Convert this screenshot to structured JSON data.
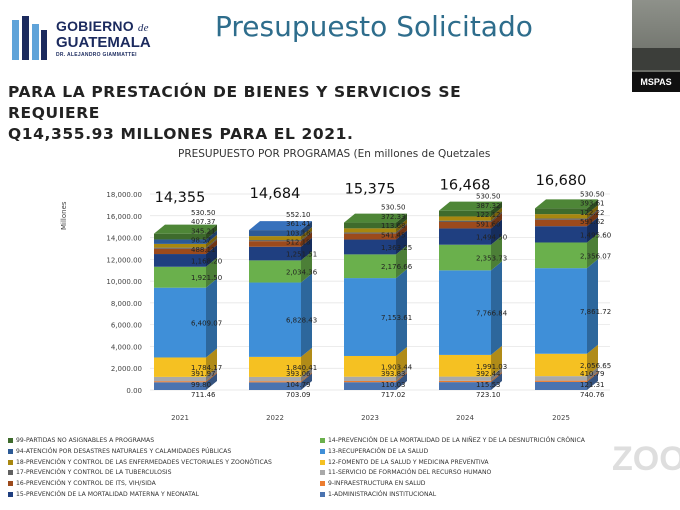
{
  "header": {
    "logo_line1": "GOBIERNO",
    "logo_de": "de",
    "logo_line2": "GUATEMALA",
    "logo_line3": "DR. ALEJANDRO GIAMMATTEI",
    "title": "Presupuesto Solicitado",
    "webcam_label": "MSPAS"
  },
  "subtitle": {
    "line1": "PARA LA PRESTACIÓN DE BIENES Y SERVICIOS SE REQUIERE",
    "line2": "Q14,355.93 MILLONES PARA EL 2021."
  },
  "watermark": "ZOO",
  "colors": {
    "title": "#2e6d8c",
    "brand_blue": "#1b2a5e"
  },
  "chart_data": {
    "type": "bar",
    "stacked": true,
    "title": "PRESUPUESTO POR PROGRAMAS (En millones de Quetzales",
    "ylabel": "Millones",
    "ylim": [
      0,
      18000
    ],
    "yticks": [
      "0.00",
      "2,000.00",
      "4,000.00",
      "6,000.00",
      "8,000.00",
      "10,000.00",
      "12,000.00",
      "14,000.00",
      "16,000.00",
      "18,000.00"
    ],
    "categories": [
      "2021",
      "2022",
      "2023",
      "2024",
      "2025"
    ],
    "totals": [
      "14,355",
      "14,684",
      "15,375",
      "16,468",
      "16,680"
    ],
    "series": [
      {
        "name": "1-ADMINISTRACIÓN INSTITUCIONAL",
        "color": "#4a73b0",
        "values": [
          711.46,
          703.09,
          717.02,
          723.1,
          740.76
        ],
        "labels": [
          "711.46",
          "703.09",
          "717.02",
          "723.10",
          "740.76"
        ]
      },
      {
        "name": "9-INFRAESTRUCTURA EN SALUD",
        "color": "#ec7d2f",
        "values": [
          99.8,
          104.79,
          110.03,
          115.53,
          121.31
        ],
        "labels": [
          "99.80",
          "104.79",
          "110.03",
          "115.53",
          "121.31"
        ]
      },
      {
        "name": "11-SERVICIO DE FORMACIÓN DEL RECURSO HUMANO",
        "color": "#a9a9a9",
        "values": [
          391.97,
          393.06,
          393.83,
          392.44,
          410.79
        ],
        "labels": [
          "391.97",
          "393.06",
          "393.83",
          "392.44",
          "410.79"
        ]
      },
      {
        "name": "12-FOMENTO DE LA SALUD Y MEDICINA PREVENTIVA",
        "color": "#f5c122",
        "values": [
          1784.17,
          1840.41,
          1903.44,
          1991.03,
          2056.65
        ],
        "labels": [
          "1,784.17",
          "1,840.41",
          "1,903.44",
          "1,991.03",
          "2,056.65"
        ]
      },
      {
        "name": "13-RECUPERACIÓN DE LA SALUD",
        "color": "#3f8fd8",
        "values": [
          6409.07,
          6828.43,
          7153.61,
          7766.84,
          7861.72
        ],
        "labels": [
          "6,409.07",
          "6,828.43",
          "7,153.61",
          "7,766.84",
          "7,861.72"
        ]
      },
      {
        "name": "14-PREVENCIÓN DE LA MORTALIDAD DE LA NIÑEZ Y DE LA DESNUTRICIÓN CRÓNICA",
        "color": "#6ab04c",
        "values": [
          1921.5,
          2034.36,
          2176.66,
          2353.73,
          2356.07
        ],
        "labels": [
          "1,921.50",
          "2,034.36",
          "2,176.66",
          "2,353.73",
          "2,356.07"
        ]
      },
      {
        "name": "15-PREVENCIÓN DE LA MORTALIDAD MATERNA Y NEONATAL",
        "color": "#1f3f80",
        "values": [
          1168.2,
          1251.51,
          1363.25,
          1494.5,
          1495.6
        ],
        "labels": [
          "1,168.20",
          "1,251.51",
          "1,363.25",
          "1,494.50",
          "1,495.60"
        ]
      },
      {
        "name": "16-PREVENCIÓN Y CONTROL DE ITS, VIH/SIDA",
        "color": "#9c4a1c",
        "values": [
          488.11,
          512.18,
          541.45,
          591.6,
          591.62
        ],
        "labels": [
          "488.11",
          "512.18",
          "541.45",
          "591.60",
          "591.62"
        ]
      },
      {
        "name": "17-PREVENCIÓN Y CONTROL DE LA TUBERCULOSIS",
        "color": "#616161",
        "values": [
          98.57,
          103.18,
          113.68,
          122.12,
          122.22
        ],
        "labels": [
          "98.57",
          "103.18",
          "113.68",
          "122.12",
          "122.22"
        ]
      },
      {
        "name": "18-PREVENCIÓN Y CONTROL DE LAS ENFERMEDADES VECTORIALES Y ZOONÓTICAS",
        "color": "#a8870f",
        "values": [
          345.21,
          361.41,
          372.33,
          387.32,
          393.61
        ],
        "labels": [
          "345.21",
          "361.41",
          "372.33",
          "387.32",
          "393.61"
        ]
      },
      {
        "name": "94-ATENCIÓN POR DESASTRES NATURALES Y CALAMIDADES PÚBLICAS",
        "color": "#2c5a96",
        "values": [
          407.37,
          552.1,
          0,
          0,
          0
        ],
        "labels": [
          "407.37",
          "552.10",
          "",
          "",
          ""
        ]
      },
      {
        "name": "99-PARTIDAS NO ASIGNABLES A PROGRAMAS",
        "color": "#3e6b2c",
        "values": [
          530.5,
          0,
          530.5,
          530.5,
          530.5
        ],
        "labels": [
          "530.50",
          "",
          "530.50",
          "530.50",
          "530.50"
        ]
      }
    ],
    "legend_placement": "bottom",
    "legend_columns": [
      [
        11,
        10,
        9,
        8,
        7,
        6
      ],
      [
        5,
        4,
        3,
        2,
        1,
        0
      ]
    ],
    "grid": true
  }
}
